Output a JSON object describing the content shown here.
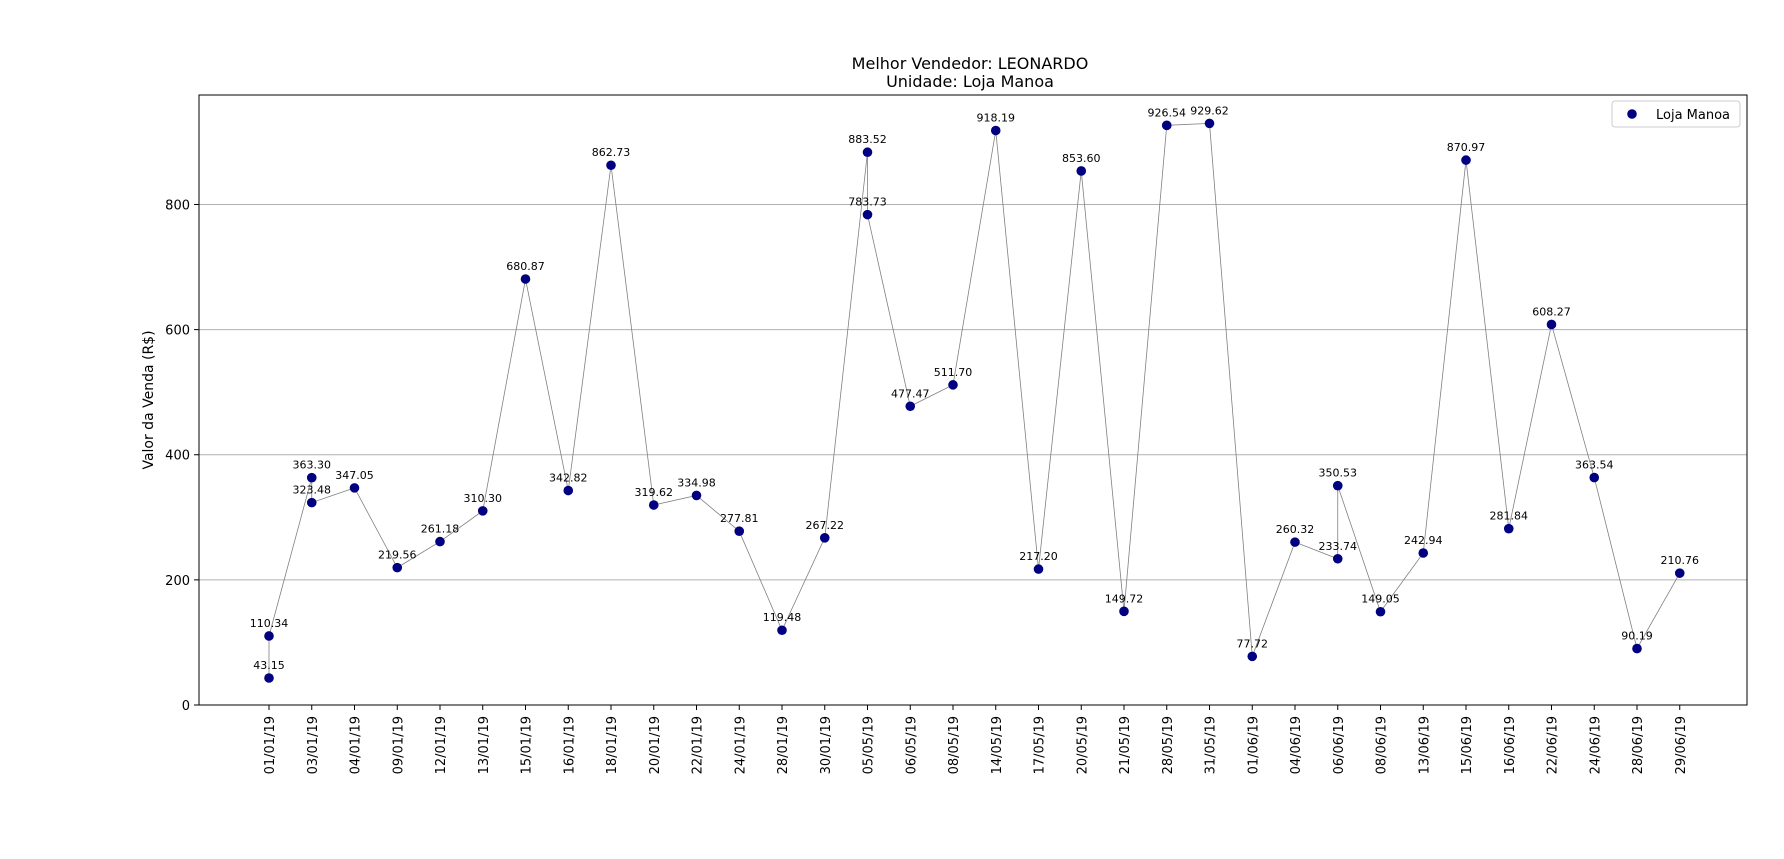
{
  "chart_data": {
    "type": "scatter",
    "title": "Melhor Vendedor:  LEONARDO",
    "subtitle": "Unidade: Loja Manoa",
    "xlabel": "",
    "ylabel": "Valor da Venda (R$)",
    "ylim": [
      0,
      975
    ],
    "yticks": [
      0,
      200,
      400,
      600,
      800
    ],
    "grid": "horizontal",
    "legend_position": "top-right",
    "line_color": "#808080",
    "marker_color": "#000080",
    "categories": [
      "01/01/19",
      "03/01/19",
      "04/01/19",
      "09/01/19",
      "12/01/19",
      "13/01/19",
      "15/01/19",
      "16/01/19",
      "18/01/19",
      "20/01/19",
      "22/01/19",
      "24/01/19",
      "28/01/19",
      "30/01/19",
      "05/05/19",
      "06/05/19",
      "08/05/19",
      "14/05/19",
      "17/05/19",
      "20/05/19",
      "21/05/19",
      "28/05/19",
      "31/05/19",
      "01/06/19",
      "04/06/19",
      "06/06/19",
      "08/06/19",
      "13/06/19",
      "15/06/19",
      "16/06/19",
      "22/06/19",
      "24/06/19",
      "28/06/19",
      "29/06/19"
    ],
    "series": [
      {
        "name": "Loja Manoa",
        "points": [
          {
            "x": "01/01/19",
            "y": 43.15,
            "label": "43.15"
          },
          {
            "x": "01/01/19",
            "y": 110.34,
            "label": "110.34"
          },
          {
            "x": "03/01/19",
            "y": 363.3,
            "label": "363.30"
          },
          {
            "x": "03/01/19",
            "y": 323.48,
            "label": "323.48"
          },
          {
            "x": "04/01/19",
            "y": 347.05,
            "label": "347.05"
          },
          {
            "x": "09/01/19",
            "y": 219.56,
            "label": "219.56"
          },
          {
            "x": "12/01/19",
            "y": 261.18,
            "label": "261.18"
          },
          {
            "x": "13/01/19",
            "y": 310.3,
            "label": "310.30"
          },
          {
            "x": "15/01/19",
            "y": 680.87,
            "label": "680.87"
          },
          {
            "x": "16/01/19",
            "y": 342.82,
            "label": "342.82"
          },
          {
            "x": "18/01/19",
            "y": 862.73,
            "label": "862.73"
          },
          {
            "x": "20/01/19",
            "y": 319.62,
            "label": "319.62"
          },
          {
            "x": "22/01/19",
            "y": 334.98,
            "label": "334.98"
          },
          {
            "x": "24/01/19",
            "y": 277.81,
            "label": "277.81"
          },
          {
            "x": "28/01/19",
            "y": 119.48,
            "label": "119.48"
          },
          {
            "x": "30/01/19",
            "y": 267.22,
            "label": "267.22"
          },
          {
            "x": "05/05/19",
            "y": 883.52,
            "label": "883.52"
          },
          {
            "x": "05/05/19",
            "y": 783.73,
            "label": "783.73"
          },
          {
            "x": "06/05/19",
            "y": 477.47,
            "label": "477.47"
          },
          {
            "x": "08/05/19",
            "y": 511.7,
            "label": "511.70"
          },
          {
            "x": "14/05/19",
            "y": 918.19,
            "label": "918.19"
          },
          {
            "x": "17/05/19",
            "y": 217.2,
            "label": "217.20"
          },
          {
            "x": "20/05/19",
            "y": 853.6,
            "label": "853.60"
          },
          {
            "x": "21/05/19",
            "y": 149.72,
            "label": "149.72"
          },
          {
            "x": "28/05/19",
            "y": 926.54,
            "label": "926.54"
          },
          {
            "x": "31/05/19",
            "y": 929.62,
            "label": "929.62"
          },
          {
            "x": "01/06/19",
            "y": 77.72,
            "label": "77.72"
          },
          {
            "x": "04/06/19",
            "y": 260.32,
            "label": "260.32"
          },
          {
            "x": "06/06/19",
            "y": 233.74,
            "label": "233.74"
          },
          {
            "x": "06/06/19",
            "y": 350.53,
            "label": "350.53"
          },
          {
            "x": "08/06/19",
            "y": 149.05,
            "label": "149.05"
          },
          {
            "x": "13/06/19",
            "y": 242.94,
            "label": "242.94"
          },
          {
            "x": "15/06/19",
            "y": 870.97,
            "label": "870.97"
          },
          {
            "x": "16/06/19",
            "y": 281.84,
            "label": "281.84"
          },
          {
            "x": "22/06/19",
            "y": 608.27,
            "label": "608.27"
          },
          {
            "x": "24/06/19",
            "y": 363.54,
            "label": "363.54"
          },
          {
            "x": "28/06/19",
            "y": 90.19,
            "label": "90.19"
          },
          {
            "x": "29/06/19",
            "y": 210.76,
            "label": "210.76"
          }
        ]
      }
    ]
  }
}
